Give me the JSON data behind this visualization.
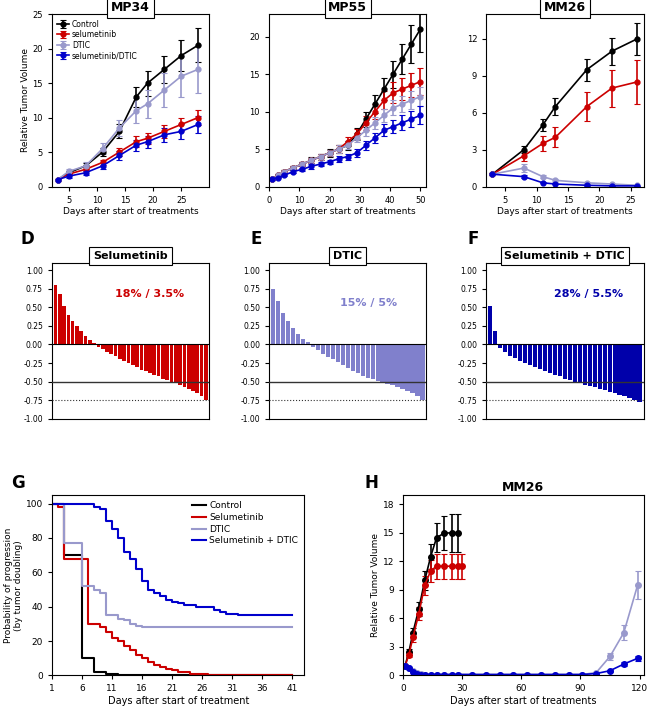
{
  "figsize": [
    6.5,
    7.11
  ],
  "dpi": 100,
  "bg_color": "#ffffff",
  "panel_A": {
    "title": "MP34",
    "xlabel": "Days after start of treatments",
    "ylabel": "Relative Tumor Volume",
    "xlim": [
      2,
      30
    ],
    "ylim": [
      0,
      25
    ],
    "xticks": [
      5,
      10,
      15,
      20,
      25
    ],
    "yticks": [
      0,
      5,
      10,
      15,
      20,
      25
    ],
    "control_x": [
      3,
      5,
      8,
      11,
      14,
      17,
      19,
      22,
      25,
      28
    ],
    "control_y": [
      1.0,
      2.0,
      3.0,
      5.0,
      8.0,
      13.0,
      15.0,
      17.0,
      19.0,
      20.5
    ],
    "control_err": [
      0.1,
      0.3,
      0.4,
      0.6,
      1.0,
      1.5,
      1.8,
      2.0,
      2.2,
      2.5
    ],
    "selum_x": [
      3,
      5,
      8,
      11,
      14,
      17,
      19,
      22,
      25,
      28
    ],
    "selum_y": [
      1.0,
      1.8,
      2.5,
      3.5,
      5.0,
      6.5,
      7.0,
      8.0,
      9.0,
      10.0
    ],
    "selum_err": [
      0.1,
      0.2,
      0.3,
      0.4,
      0.6,
      0.8,
      0.8,
      0.9,
      1.0,
      1.1
    ],
    "dtic_x": [
      3,
      5,
      8,
      11,
      14,
      17,
      19,
      22,
      25,
      28
    ],
    "dtic_y": [
      1.0,
      2.2,
      3.0,
      5.5,
      8.5,
      11.0,
      12.0,
      14.0,
      16.0,
      17.0
    ],
    "dtic_err": [
      0.1,
      0.3,
      0.5,
      0.8,
      1.2,
      1.8,
      2.0,
      2.5,
      3.0,
      3.5
    ],
    "combo_x": [
      3,
      5,
      8,
      11,
      14,
      17,
      19,
      22,
      25,
      28
    ],
    "combo_y": [
      1.0,
      1.5,
      2.0,
      3.0,
      4.5,
      6.0,
      6.5,
      7.5,
      8.0,
      9.0
    ],
    "combo_err": [
      0.1,
      0.2,
      0.3,
      0.4,
      0.6,
      0.8,
      0.9,
      1.0,
      1.1,
      1.2
    ]
  },
  "panel_B": {
    "title": "MP55",
    "xlabel": "Days after start of treatments",
    "ylabel": "",
    "xlim": [
      0,
      52
    ],
    "ylim": [
      0,
      23
    ],
    "xticks": [
      0,
      10,
      20,
      30,
      40,
      50
    ],
    "yticks": [
      0,
      5,
      10,
      15,
      20
    ],
    "control_x": [
      1,
      3,
      5,
      8,
      11,
      14,
      17,
      20,
      23,
      26,
      29,
      32,
      35,
      38,
      41,
      44,
      47,
      50
    ],
    "control_y": [
      1.0,
      1.5,
      2.0,
      2.5,
      3.0,
      3.5,
      4.0,
      4.5,
      5.0,
      5.5,
      7.0,
      9.0,
      11.0,
      13.0,
      15.0,
      17.0,
      19.0,
      21.0
    ],
    "control_err": [
      0.1,
      0.2,
      0.2,
      0.3,
      0.3,
      0.4,
      0.4,
      0.5,
      0.5,
      0.6,
      0.8,
      1.0,
      1.2,
      1.5,
      1.8,
      2.0,
      2.5,
      3.0
    ],
    "selum_x": [
      1,
      3,
      5,
      8,
      11,
      14,
      17,
      20,
      23,
      26,
      29,
      32,
      35,
      38,
      41,
      44,
      47,
      50
    ],
    "selum_y": [
      1.0,
      1.5,
      2.0,
      2.5,
      3.0,
      3.5,
      4.0,
      4.5,
      5.0,
      6.0,
      7.0,
      8.5,
      10.0,
      11.5,
      12.5,
      13.0,
      13.5,
      14.0
    ],
    "selum_err": [
      0.1,
      0.1,
      0.2,
      0.2,
      0.3,
      0.3,
      0.4,
      0.4,
      0.5,
      0.6,
      0.7,
      0.9,
      1.0,
      1.2,
      1.4,
      1.5,
      1.6,
      1.8
    ],
    "dtic_x": [
      1,
      3,
      5,
      8,
      11,
      14,
      17,
      20,
      23,
      26,
      29,
      32,
      35,
      38,
      41,
      44,
      47,
      50
    ],
    "dtic_y": [
      1.0,
      1.5,
      2.0,
      2.5,
      3.0,
      3.5,
      4.0,
      4.5,
      5.0,
      5.5,
      6.5,
      7.5,
      8.5,
      9.5,
      10.5,
      11.0,
      11.5,
      12.0
    ],
    "dtic_err": [
      0.1,
      0.1,
      0.2,
      0.2,
      0.3,
      0.3,
      0.4,
      0.4,
      0.5,
      0.5,
      0.6,
      0.7,
      0.8,
      0.9,
      1.0,
      1.1,
      1.2,
      1.3
    ],
    "combo_x": [
      1,
      3,
      5,
      8,
      11,
      14,
      17,
      20,
      23,
      26,
      29,
      32,
      35,
      38,
      41,
      44,
      47,
      50
    ],
    "combo_y": [
      1.0,
      1.2,
      1.5,
      2.0,
      2.3,
      2.7,
      3.0,
      3.3,
      3.7,
      4.0,
      4.5,
      5.5,
      6.5,
      7.5,
      8.0,
      8.5,
      9.0,
      9.5
    ],
    "combo_err": [
      0.1,
      0.1,
      0.1,
      0.2,
      0.2,
      0.3,
      0.3,
      0.3,
      0.4,
      0.4,
      0.5,
      0.6,
      0.7,
      0.8,
      0.9,
      1.0,
      1.1,
      1.2
    ]
  },
  "panel_C": {
    "title": "MM26",
    "xlabel": "Days after start of treatments",
    "ylabel": "",
    "xlim": [
      2,
      27
    ],
    "ylim": [
      0,
      14
    ],
    "xticks": [
      5,
      10,
      15,
      20,
      25
    ],
    "yticks": [
      0,
      3,
      6,
      9,
      12
    ],
    "control_x": [
      3,
      8,
      11,
      13,
      18,
      22,
      26
    ],
    "control_y": [
      1.0,
      3.0,
      5.0,
      6.5,
      9.5,
      11.0,
      12.0
    ],
    "control_err": [
      0.1,
      0.3,
      0.5,
      0.7,
      0.9,
      1.1,
      1.3
    ],
    "selum_x": [
      3,
      8,
      11,
      13,
      18,
      22,
      26
    ],
    "selum_y": [
      1.0,
      2.5,
      3.5,
      4.0,
      6.5,
      8.0,
      8.5
    ],
    "selum_err": [
      0.1,
      0.4,
      0.6,
      0.8,
      1.2,
      1.5,
      1.8
    ],
    "dtic_x": [
      3,
      8,
      11,
      13,
      18,
      22,
      26
    ],
    "dtic_y": [
      1.0,
      1.5,
      0.8,
      0.5,
      0.3,
      0.2,
      0.1
    ],
    "dtic_err": [
      0.1,
      0.3,
      0.1,
      0.1,
      0.05,
      0.03,
      0.02
    ],
    "combo_x": [
      3,
      8,
      11,
      13,
      18,
      22,
      26
    ],
    "combo_y": [
      1.0,
      0.8,
      0.3,
      0.2,
      0.1,
      0.05,
      0.05
    ],
    "combo_err": [
      0.1,
      0.1,
      0.05,
      0.03,
      0.02,
      0.01,
      0.01
    ]
  },
  "panel_D": {
    "title": "Selumetinib",
    "color": "#cc0000",
    "annotation": "18% / 3.5%",
    "annotation_color": "#cc0000",
    "bar_values": [
      0.8,
      0.68,
      0.52,
      0.4,
      0.32,
      0.25,
      0.18,
      0.12,
      0.06,
      0.02,
      -0.03,
      -0.06,
      -0.1,
      -0.13,
      -0.16,
      -0.19,
      -0.22,
      -0.25,
      -0.28,
      -0.31,
      -0.34,
      -0.36,
      -0.39,
      -0.41,
      -0.43,
      -0.46,
      -0.48,
      -0.5,
      -0.52,
      -0.55,
      -0.57,
      -0.6,
      -0.63,
      -0.66,
      -0.7,
      -0.75
    ]
  },
  "panel_E": {
    "title": "DTIC",
    "color": "#8080cc",
    "annotation": "15% / 5%",
    "annotation_color": "#8080cc",
    "bar_values": [
      0.75,
      0.58,
      0.42,
      0.32,
      0.22,
      0.14,
      0.08,
      0.03,
      -0.03,
      -0.08,
      -0.13,
      -0.17,
      -0.2,
      -0.24,
      -0.28,
      -0.32,
      -0.36,
      -0.39,
      -0.42,
      -0.45,
      -0.47,
      -0.49,
      -0.51,
      -0.53,
      -0.55,
      -0.57,
      -0.6,
      -0.63,
      -0.66,
      -0.7,
      -0.75
    ]
  },
  "panel_F": {
    "title": "Selumetinib + DTIC",
    "color": "#0000aa",
    "annotation": "28% / 5.5%",
    "annotation_color": "#0000aa",
    "bar_values": [
      0.52,
      0.18,
      -0.05,
      -0.1,
      -0.15,
      -0.18,
      -0.22,
      -0.25,
      -0.28,
      -0.3,
      -0.33,
      -0.36,
      -0.38,
      -0.41,
      -0.43,
      -0.46,
      -0.48,
      -0.5,
      -0.52,
      -0.54,
      -0.56,
      -0.58,
      -0.6,
      -0.62,
      -0.64,
      -0.66,
      -0.68,
      -0.7,
      -0.72,
      -0.75,
      -0.78
    ]
  },
  "panel_G": {
    "xlabel": "Days after start of treatment",
    "ylabel": "Probability of progression\n(by tumor doubling)",
    "xlim": [
      1,
      43
    ],
    "ylim": [
      0,
      105
    ],
    "xticks": [
      1,
      6,
      11,
      16,
      21,
      26,
      31,
      36,
      41
    ],
    "yticks": [
      0,
      20,
      40,
      60,
      80,
      100
    ],
    "control_x": [
      1,
      3,
      4,
      5,
      6,
      7,
      8,
      9,
      10,
      11,
      12,
      41
    ],
    "control_y": [
      100,
      70,
      70,
      70,
      10,
      10,
      2,
      2,
      1,
      1,
      0,
      0
    ],
    "selum_x": [
      1,
      2,
      3,
      4,
      5,
      6,
      7,
      8,
      9,
      10,
      11,
      12,
      13,
      14,
      15,
      16,
      17,
      18,
      19,
      20,
      21,
      22,
      23,
      24,
      25,
      26,
      27,
      28,
      29,
      30,
      41
    ],
    "selum_y": [
      100,
      98,
      68,
      68,
      68,
      68,
      30,
      30,
      28,
      25,
      22,
      20,
      17,
      15,
      12,
      10,
      8,
      6,
      5,
      4,
      3,
      2,
      2,
      1,
      1,
      1,
      0,
      0,
      0,
      0,
      0
    ],
    "dtic_x": [
      1,
      2,
      3,
      4,
      5,
      6,
      7,
      8,
      9,
      10,
      11,
      12,
      13,
      14,
      15,
      16,
      17,
      18,
      19,
      20,
      21,
      22,
      23,
      24,
      25,
      26,
      27,
      28,
      29,
      41
    ],
    "dtic_y": [
      100,
      100,
      77,
      77,
      77,
      52,
      52,
      50,
      48,
      35,
      35,
      33,
      32,
      30,
      29,
      28,
      28,
      28,
      28,
      28,
      28,
      28,
      28,
      28,
      28,
      28,
      28,
      28,
      28,
      28
    ],
    "combo_x": [
      1,
      2,
      3,
      4,
      5,
      6,
      7,
      8,
      9,
      10,
      11,
      12,
      13,
      14,
      15,
      16,
      17,
      18,
      19,
      20,
      21,
      22,
      23,
      24,
      25,
      26,
      27,
      28,
      29,
      30,
      31,
      32,
      33,
      34,
      35,
      36,
      37,
      38,
      39,
      40,
      41
    ],
    "combo_y": [
      100,
      100,
      100,
      100,
      100,
      100,
      100,
      98,
      97,
      90,
      85,
      80,
      72,
      68,
      62,
      55,
      50,
      48,
      46,
      44,
      43,
      42,
      41,
      41,
      40,
      40,
      40,
      38,
      37,
      36,
      36,
      35,
      35,
      35,
      35,
      35,
      35,
      35,
      35,
      35,
      35
    ]
  },
  "panel_H": {
    "title": "MM26",
    "xlabel": "Days after start of treatments",
    "ylabel": "Relative Tumor Volume",
    "xlim": [
      0,
      122
    ],
    "ylim": [
      0,
      19
    ],
    "xticks": [
      0,
      30,
      60,
      90,
      120
    ],
    "yticks": [
      0,
      3,
      6,
      9,
      12,
      15,
      18
    ],
    "control_x": [
      1,
      3,
      5,
      8,
      11,
      14,
      17,
      21,
      25,
      28
    ],
    "control_y": [
      1.0,
      2.5,
      4.5,
      7.0,
      10.0,
      12.5,
      14.5,
      15.0,
      15.0,
      15.0
    ],
    "control_err": [
      0.1,
      0.3,
      0.5,
      0.7,
      1.0,
      1.3,
      1.5,
      1.8,
      2.0,
      2.0
    ],
    "selum_x": [
      1,
      3,
      5,
      8,
      11,
      14,
      17,
      21,
      25,
      28,
      30
    ],
    "selum_y": [
      1.0,
      2.2,
      4.0,
      6.5,
      9.5,
      11.0,
      11.5,
      11.5,
      11.5,
      11.5,
      11.5
    ],
    "selum_err": [
      0.1,
      0.3,
      0.5,
      0.7,
      1.0,
      1.2,
      1.3,
      1.3,
      1.3,
      1.3,
      1.3
    ],
    "dtic_x": [
      1,
      3,
      5,
      7,
      9,
      11,
      14,
      17,
      21,
      25,
      28,
      35,
      42,
      49,
      56,
      63,
      70,
      77,
      84,
      91,
      98,
      105,
      112,
      119
    ],
    "dtic_y": [
      1.0,
      0.8,
      0.5,
      0.3,
      0.2,
      0.1,
      0.1,
      0.1,
      0.1,
      0.1,
      0.1,
      0.1,
      0.1,
      0.1,
      0.1,
      0.1,
      0.1,
      0.1,
      0.1,
      0.1,
      0.3,
      2.0,
      4.5,
      9.5
    ],
    "dtic_err": [
      0.1,
      0.1,
      0.1,
      0.05,
      0.03,
      0.03,
      0.03,
      0.03,
      0.03,
      0.03,
      0.03,
      0.03,
      0.03,
      0.03,
      0.03,
      0.03,
      0.03,
      0.03,
      0.03,
      0.05,
      0.1,
      0.4,
      0.8,
      1.5
    ],
    "combo_x": [
      1,
      3,
      5,
      7,
      9,
      11,
      14,
      17,
      21,
      25,
      28,
      35,
      42,
      49,
      56,
      63,
      70,
      77,
      84,
      91,
      98,
      105,
      112,
      119
    ],
    "combo_y": [
      1.0,
      0.8,
      0.4,
      0.2,
      0.1,
      0.1,
      0.1,
      0.1,
      0.1,
      0.1,
      0.1,
      0.1,
      0.1,
      0.1,
      0.1,
      0.1,
      0.1,
      0.1,
      0.1,
      0.1,
      0.2,
      0.5,
      1.2,
      1.8
    ],
    "combo_err": [
      0.1,
      0.1,
      0.05,
      0.03,
      0.02,
      0.02,
      0.02,
      0.02,
      0.02,
      0.02,
      0.02,
      0.02,
      0.02,
      0.02,
      0.02,
      0.02,
      0.02,
      0.02,
      0.02,
      0.03,
      0.05,
      0.1,
      0.2,
      0.3
    ]
  },
  "colors": {
    "control": "#000000",
    "selumetinib": "#cc0000",
    "dtic": "#9999cc",
    "combo": "#0000cc"
  },
  "legend_labels_A": [
    "Control",
    "selumetinib",
    "DTIC",
    "selumetinib/DTIC"
  ],
  "legend_labels_GH": [
    "Control",
    "Selumetinib",
    "DTIC",
    "Selumetinib + DTIC"
  ]
}
